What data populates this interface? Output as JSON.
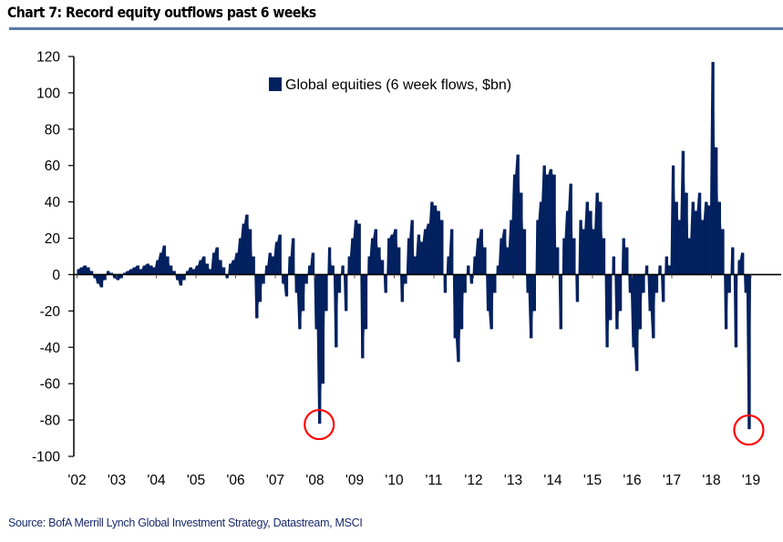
{
  "title": "Chart 7: Record equity outflows past 6 weeks",
  "source": "Source:  BofA Merrill Lynch Global Investment Strategy, Datastream, MSCI",
  "colors": {
    "series": "#03215f",
    "highlight": "#ff0000",
    "rule": "#5b7aa8"
  },
  "chart_data": {
    "type": "area",
    "title": "Chart 7: Record equity outflows past 6 weeks",
    "legend": {
      "label": "Global equities (6 week flows, $bn)",
      "placement": "top-center"
    },
    "ylim": [
      -100,
      120
    ],
    "yticks": [
      "120",
      "100",
      "80",
      "60",
      "40",
      "20",
      "0",
      "-20",
      "-40",
      "-60",
      "-80",
      "-100"
    ],
    "xticks": [
      "'02",
      "'03",
      "'04",
      "'05",
      "'06",
      "'07",
      "'08",
      "'09",
      "'10",
      "'11",
      "'12",
      "'13",
      "'14",
      "'15",
      "'16",
      "'17",
      "'18",
      "'19"
    ],
    "x_start": "2002-01",
    "x_frequency": "monthly",
    "series": [
      {
        "name": "Global equities (6 week flows, $bn)",
        "values": [
          3,
          4,
          5,
          4,
          2,
          -2,
          -5,
          -7,
          -3,
          2,
          1,
          -2,
          -3,
          -2,
          1,
          2,
          3,
          4,
          5,
          3,
          5,
          6,
          5,
          4,
          8,
          12,
          16,
          10,
          5,
          2,
          -3,
          -6,
          -3,
          2,
          4,
          3,
          5,
          8,
          10,
          6,
          3,
          12,
          15,
          8,
          4,
          -2,
          6,
          8,
          12,
          20,
          28,
          33,
          25,
          10,
          -24,
          -15,
          -5,
          5,
          12,
          10,
          18,
          22,
          -5,
          -12,
          10,
          20,
          -10,
          -30,
          -20,
          -5,
          5,
          12,
          -30,
          -82,
          -60,
          -20,
          15,
          5,
          -40,
          -10,
          5,
          -20,
          10,
          20,
          30,
          28,
          -46,
          -30,
          10,
          20,
          25,
          15,
          8,
          -10,
          20,
          22,
          25,
          15,
          -15,
          -5,
          20,
          30,
          10,
          22,
          18,
          25,
          28,
          40,
          38,
          35,
          30,
          -10,
          10,
          25,
          -35,
          -48,
          -30,
          -10,
          5,
          -5,
          10,
          20,
          25,
          15,
          -20,
          -30,
          -10,
          5,
          20,
          25,
          15,
          30,
          55,
          66,
          45,
          25,
          -10,
          -35,
          -20,
          30,
          40,
          60,
          55,
          58,
          55,
          15,
          -30,
          20,
          35,
          50,
          20,
          -15,
          30,
          25,
          40,
          35,
          25,
          45,
          40,
          20,
          -40,
          -25,
          10,
          -30,
          -20,
          20,
          15,
          -10,
          -40,
          -53,
          -30,
          -10,
          5,
          -20,
          -35,
          -10,
          5,
          -15,
          10,
          5,
          60,
          40,
          30,
          68,
          45,
          20,
          40,
          35,
          45,
          30,
          40,
          38,
          117,
          70,
          40,
          25,
          -30,
          -10,
          15,
          -40,
          8,
          12,
          -10,
          -85
        ]
      }
    ],
    "annotations": [
      {
        "type": "circle",
        "x": "2008-02",
        "y": -82
      },
      {
        "type": "circle",
        "x": "2018-12",
        "y": -85
      }
    ],
    "grid": false
  }
}
